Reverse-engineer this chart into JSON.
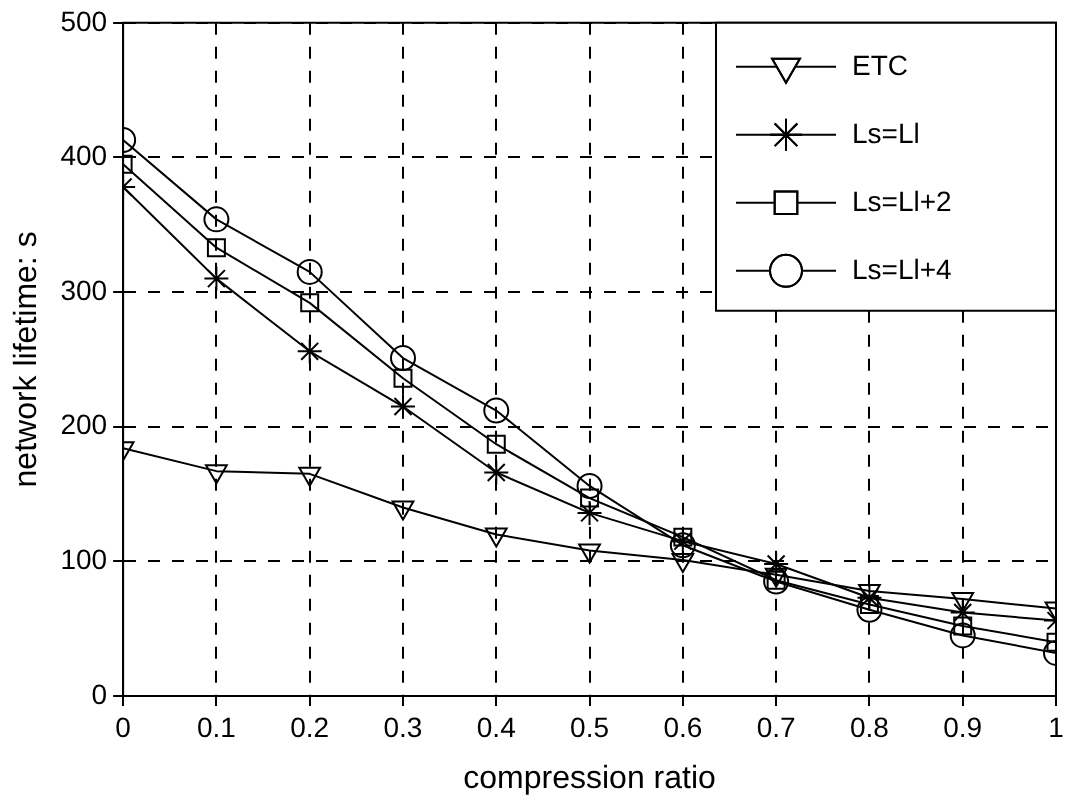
{
  "chart_data": {
    "type": "line",
    "xlabel": "compression ratio",
    "ylabel": "network lifetime: s",
    "x": [
      0,
      0.1,
      0.2,
      0.3,
      0.4,
      0.5,
      0.6,
      0.7,
      0.8,
      0.9,
      1
    ],
    "xlim": [
      0,
      1
    ],
    "xticks": [
      0,
      0.1,
      0.2,
      0.3,
      0.4,
      0.5,
      0.6,
      0.7,
      0.8,
      0.9,
      1
    ],
    "ylim": [
      0,
      500
    ],
    "yticks": [
      0,
      100,
      200,
      300,
      400,
      500
    ],
    "grid": true,
    "legend": "top right",
    "line_style": "solid",
    "series": [
      {
        "name": "ETC",
        "color": "#000000",
        "marker": "triangle",
        "values": [
          184,
          167,
          165,
          140,
          120,
          108,
          101,
          90,
          78,
          72,
          65
        ]
      },
      {
        "name": "Ls=Ll",
        "color": "#000000",
        "marker": "cross",
        "values": [
          378,
          310,
          256,
          215,
          166,
          136,
          115,
          98,
          73,
          62,
          56
        ]
      },
      {
        "name": "Ls=Ll+2",
        "color": "#000000",
        "marker": "square",
        "values": [
          395,
          333,
          292,
          236,
          187,
          147,
          118,
          86,
          68,
          52,
          40
        ]
      },
      {
        "name": "Ls=Ll+4",
        "color": "#000000",
        "marker": "circle",
        "values": [
          413,
          354,
          315,
          251,
          212,
          156,
          112,
          85,
          64,
          45,
          32
        ]
      }
    ]
  }
}
